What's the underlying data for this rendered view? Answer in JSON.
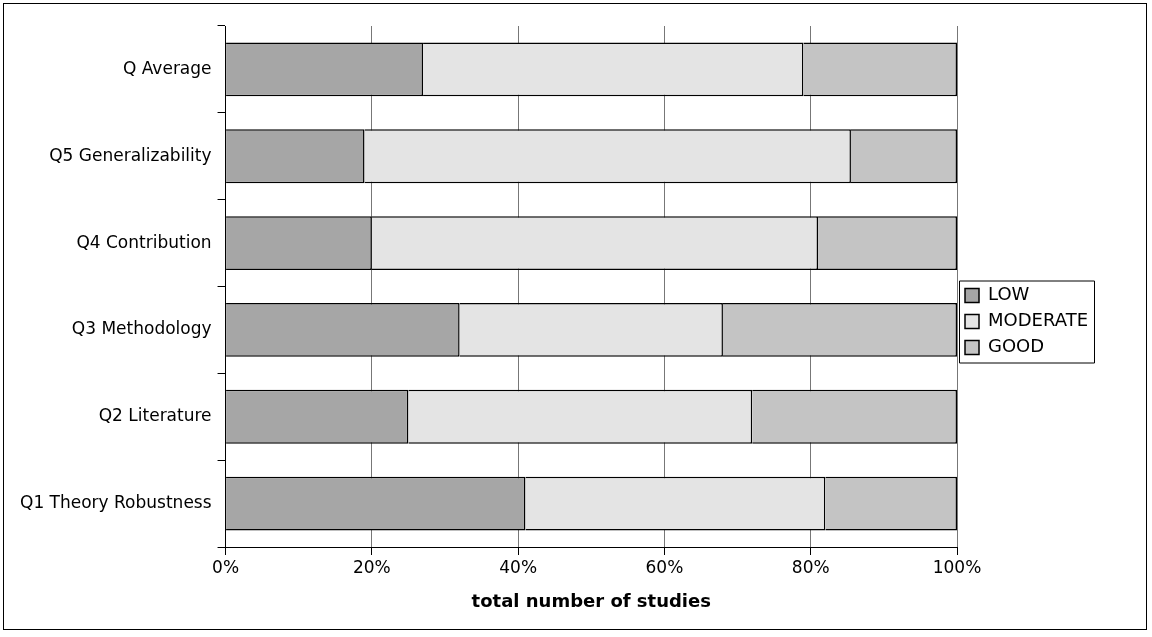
{
  "chart_data": {
    "type": "bar",
    "orientation": "horizontal",
    "stacked": true,
    "xlabel": "total number of studies",
    "categories": [
      "Q Average",
      "Q5 Generalizability",
      "Q4 Contribution",
      "Q3 Methodology",
      "Q2 Literature",
      "Q1 Theory Robustness"
    ],
    "series": [
      {
        "name": "LOW",
        "color": "#a6a6a6",
        "values": [
          27,
          19,
          20,
          32,
          25,
          41
        ]
      },
      {
        "name": "MODERATE",
        "color": "#e4e4e4",
        "values": [
          52,
          66.5,
          61,
          36,
          47,
          41
        ]
      },
      {
        "name": "GOOD",
        "color": "#c4c4c4",
        "values": [
          21,
          14.5,
          19,
          32,
          28,
          18
        ]
      }
    ],
    "xlim": [
      0,
      100
    ],
    "xticks": [
      {
        "value": 0,
        "label": "0%"
      },
      {
        "value": 20,
        "label": "20%"
      },
      {
        "value": 40,
        "label": "40%"
      },
      {
        "value": 60,
        "label": "60%"
      },
      {
        "value": 80,
        "label": "80%"
      },
      {
        "value": 100,
        "label": "100%"
      }
    ],
    "grid": "x",
    "legend": "right"
  }
}
